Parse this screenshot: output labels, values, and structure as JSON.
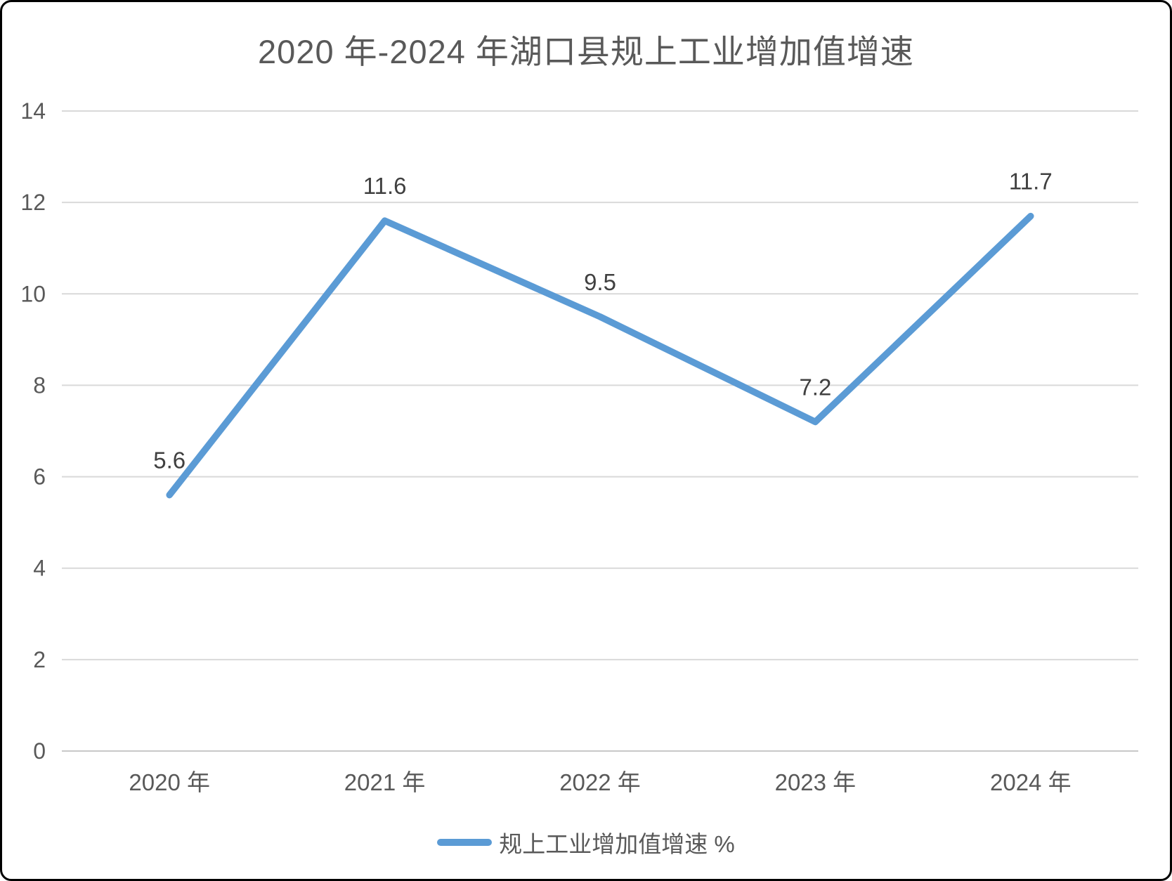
{
  "chart_data": {
    "type": "line",
    "title": "2020 年-2024 年湖口县规上工业增加值增速",
    "categories": [
      "2020 年",
      "2021 年",
      "2022 年",
      "2023 年",
      "2024 年"
    ],
    "series": [
      {
        "name": "规上工业增加值增速 %",
        "values": [
          5.6,
          11.6,
          9.5,
          7.2,
          11.7
        ]
      }
    ],
    "xlabel": "",
    "ylabel": "",
    "ylim": [
      0,
      14
    ],
    "yticks": [
      0,
      2,
      4,
      6,
      8,
      10,
      12,
      14
    ],
    "grid": "horizontal",
    "legend_position": "bottom",
    "data_labels_shown": true,
    "colors": {
      "series": "#5B9BD5",
      "gridline": "#D9D9D9",
      "axis_line": "#C8C8C8",
      "axis_text": "#595959",
      "data_label": "#404040",
      "title_text": "#595959",
      "frame_border": "#000000"
    }
  }
}
